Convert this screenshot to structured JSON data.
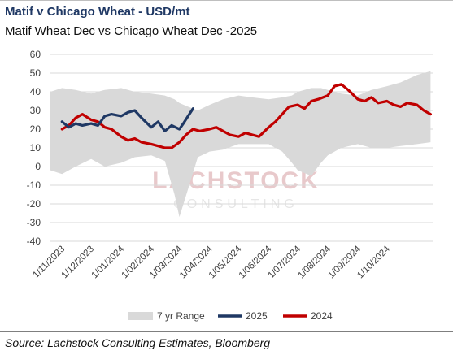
{
  "header": {
    "title": "Matif v Chicago Wheat - USD/mt",
    "subtitle": "Matif Wheat Dec vs Chicago Wheat Dec -2025"
  },
  "footer": {
    "source": "Source: Lachstock Consulting Estimates, Bloomberg"
  },
  "watermark": {
    "line1": "LACHSTOCK",
    "line2": "CONSULTING"
  },
  "chart_data": {
    "type": "area",
    "title": "Matif Wheat Dec vs Chicago Wheat Dec -2025",
    "xlabel": "",
    "ylabel": "",
    "ylim": [
      -40,
      60
    ],
    "yticks": [
      "60",
      "50",
      "40",
      "30",
      "20",
      "10",
      "0",
      "-10",
      "-20",
      "-30",
      "-40"
    ],
    "x_tick_labels": [
      "1/11/2023",
      "1/12/2023",
      "1/01/2024",
      "1/02/2024",
      "1/03/2024",
      "1/04/2024",
      "1/05/2024",
      "1/06/2024",
      "1/07/2024",
      "1/08/2024",
      "1/09/2024",
      "1/10/2024"
    ],
    "grid": true,
    "legend_position": "bottom",
    "series": [
      {
        "name": "7 yr Range",
        "color": "#d9d9d9",
        "dates": [
          "2023-10-20",
          "2023-11-01",
          "2023-11-15",
          "2023-12-01",
          "2023-12-15",
          "2024-01-01",
          "2024-01-15",
          "2024-02-01",
          "2024-02-15",
          "2024-02-25",
          "2024-03-01",
          "2024-03-10",
          "2024-03-20",
          "2024-04-01",
          "2024-04-15",
          "2024-05-01",
          "2024-05-15",
          "2024-06-01",
          "2024-06-15",
          "2024-06-25",
          "2024-07-01",
          "2024-07-15",
          "2024-07-25",
          "2024-08-01",
          "2024-08-15",
          "2024-09-01",
          "2024-09-15",
          "2024-10-01",
          "2024-10-15",
          "2024-11-01",
          "2024-11-15"
        ],
        "upper": [
          40,
          42,
          41,
          39,
          41,
          42,
          40,
          39,
          38,
          36,
          34,
          32,
          30,
          33,
          36,
          38,
          37,
          36,
          37,
          38,
          40,
          42,
          42,
          41,
          39,
          38,
          41,
          43,
          45,
          49,
          51
        ],
        "lower": [
          -2,
          -4,
          0,
          4,
          0,
          2,
          5,
          6,
          3,
          -15,
          -27,
          -12,
          5,
          8,
          9,
          12,
          12,
          12,
          8,
          2,
          -2,
          -5,
          2,
          6,
          10,
          12,
          10,
          10,
          11,
          12,
          13
        ]
      },
      {
        "name": "2025",
        "color": "#1f3864",
        "dates": [
          "2023-11-01",
          "2023-11-08",
          "2023-11-15",
          "2023-11-22",
          "2023-12-01",
          "2023-12-08",
          "2023-12-15",
          "2023-12-22",
          "2024-01-01",
          "2024-01-08",
          "2024-01-15",
          "2024-01-22",
          "2024-02-01",
          "2024-02-08",
          "2024-02-15",
          "2024-02-22",
          "2024-03-01",
          "2024-03-05",
          "2024-03-10",
          "2024-03-15"
        ],
        "values": [
          24,
          21,
          23,
          22,
          23,
          22,
          27,
          28,
          27,
          29,
          30,
          26,
          21,
          24,
          19,
          22,
          20,
          23,
          27,
          31
        ]
      },
      {
        "name": "2024",
        "color": "#c00000",
        "dates": [
          "2023-11-01",
          "2023-11-08",
          "2023-11-15",
          "2023-11-22",
          "2023-12-01",
          "2023-12-08",
          "2023-12-15",
          "2023-12-22",
          "2024-01-01",
          "2024-01-08",
          "2024-01-15",
          "2024-01-22",
          "2024-02-01",
          "2024-02-08",
          "2024-02-15",
          "2024-02-22",
          "2024-03-01",
          "2024-03-08",
          "2024-03-15",
          "2024-03-22",
          "2024-04-01",
          "2024-04-08",
          "2024-04-15",
          "2024-04-22",
          "2024-05-01",
          "2024-05-08",
          "2024-05-15",
          "2024-05-22",
          "2024-06-01",
          "2024-06-08",
          "2024-06-15",
          "2024-06-22",
          "2024-07-01",
          "2024-07-08",
          "2024-07-15",
          "2024-07-22",
          "2024-08-01",
          "2024-08-08",
          "2024-08-15",
          "2024-08-22",
          "2024-09-01",
          "2024-09-08",
          "2024-09-15",
          "2024-09-22",
          "2024-10-01",
          "2024-10-08",
          "2024-10-15",
          "2024-10-22",
          "2024-11-01",
          "2024-11-08",
          "2024-11-15"
        ],
        "values": [
          20,
          22,
          26,
          28,
          25,
          24,
          21,
          20,
          16,
          14,
          15,
          13,
          12,
          11,
          10,
          10,
          13,
          17,
          20,
          19,
          20,
          21,
          19,
          17,
          16,
          18,
          17,
          16,
          21,
          24,
          28,
          32,
          33,
          31,
          35,
          36,
          38,
          43,
          44,
          41,
          36,
          35,
          37,
          34,
          35,
          33,
          32,
          34,
          33,
          30,
          28
        ]
      }
    ]
  }
}
